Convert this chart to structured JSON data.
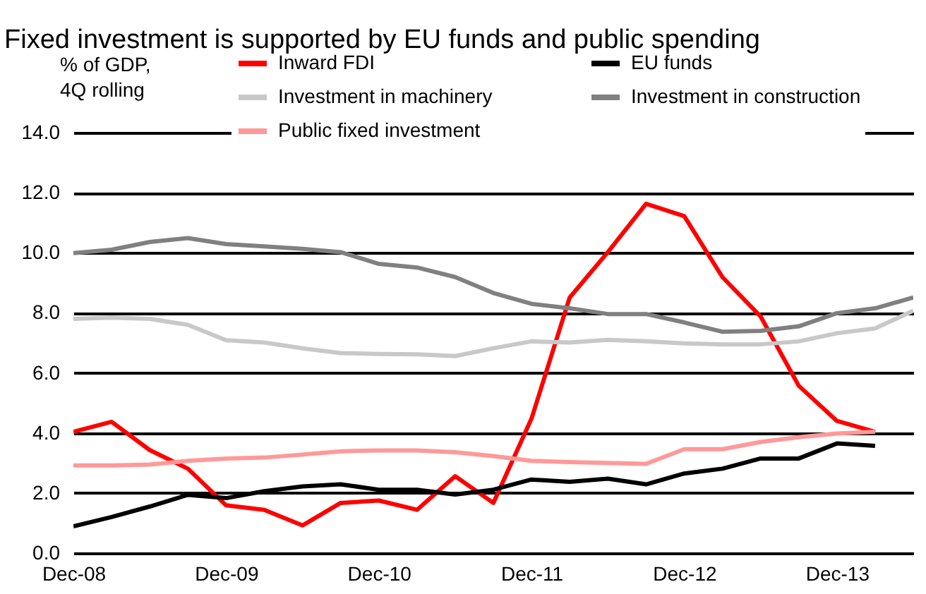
{
  "chart_data": {
    "type": "line",
    "title": "Fixed investment is supported by EU funds and public spending",
    "ylabel": "% of GDP,\n4Q rolling",
    "categories": [
      "Dec-08",
      null,
      null,
      null,
      "Dec-09",
      null,
      null,
      null,
      "Dec-10",
      null,
      null,
      null,
      "Dec-11",
      null,
      null,
      null,
      "Dec-12",
      null,
      null,
      null,
      "Dec-13",
      null,
      null
    ],
    "series": [
      {
        "name": "Inward FDI",
        "color": "#ff0000",
        "values": [
          4.04,
          4.37,
          3.43,
          2.81,
          1.59,
          1.44,
          0.92,
          1.67,
          1.75,
          1.44,
          2.56,
          1.67,
          4.48,
          8.51,
          10.02,
          11.63,
          11.22,
          9.19,
          7.88,
          5.57,
          4.4,
          4.04,
          null
        ]
      },
      {
        "name": "EU funds",
        "color": "#000000",
        "values": [
          0.89,
          1.2,
          1.55,
          1.94,
          1.83,
          2.06,
          2.22,
          2.29,
          2.11,
          2.11,
          1.95,
          2.11,
          2.45,
          2.37,
          2.48,
          2.29,
          2.65,
          2.81,
          3.15,
          3.15,
          3.65,
          3.57,
          null
        ]
      },
      {
        "name": "Investment in machinery",
        "color": "#c8c8c8",
        "values": [
          7.8,
          7.84,
          7.8,
          7.6,
          7.09,
          7.01,
          6.82,
          6.66,
          6.63,
          6.62,
          6.56,
          6.82,
          7.05,
          7.01,
          7.1,
          7.05,
          6.98,
          6.95,
          6.95,
          7.05,
          7.32,
          7.48,
          8.07
        ]
      },
      {
        "name": "Investment in construction",
        "color": "#808080",
        "values": [
          9.99,
          10.1,
          10.36,
          10.49,
          10.29,
          10.21,
          10.13,
          10.02,
          9.63,
          9.51,
          9.19,
          8.66,
          8.3,
          8.15,
          7.96,
          7.96,
          7.68,
          7.37,
          7.4,
          7.55,
          7.99,
          8.15,
          8.51
        ]
      },
      {
        "name": "Public fixed investment",
        "color": "#ff9999",
        "values": [
          2.92,
          2.92,
          2.95,
          3.07,
          3.15,
          3.18,
          3.28,
          3.39,
          3.42,
          3.42,
          3.36,
          3.23,
          3.07,
          3.03,
          3.0,
          2.97,
          3.46,
          3.46,
          3.7,
          3.86,
          3.98,
          4.04,
          null
        ]
      }
    ],
    "ylim": [
      0,
      14
    ],
    "yticks": [
      {
        "value": 0,
        "label": "0.0"
      },
      {
        "value": 2,
        "label": "2.0"
      },
      {
        "value": 4,
        "label": "4.0"
      },
      {
        "value": 6,
        "label": "6.0"
      },
      {
        "value": 8,
        "label": "8.0"
      },
      {
        "value": 10,
        "label": "10.0"
      },
      {
        "value": 12,
        "label": "12.0"
      },
      {
        "value": 14,
        "label": "14.0"
      }
    ],
    "grid": "y",
    "legend": "top"
  }
}
